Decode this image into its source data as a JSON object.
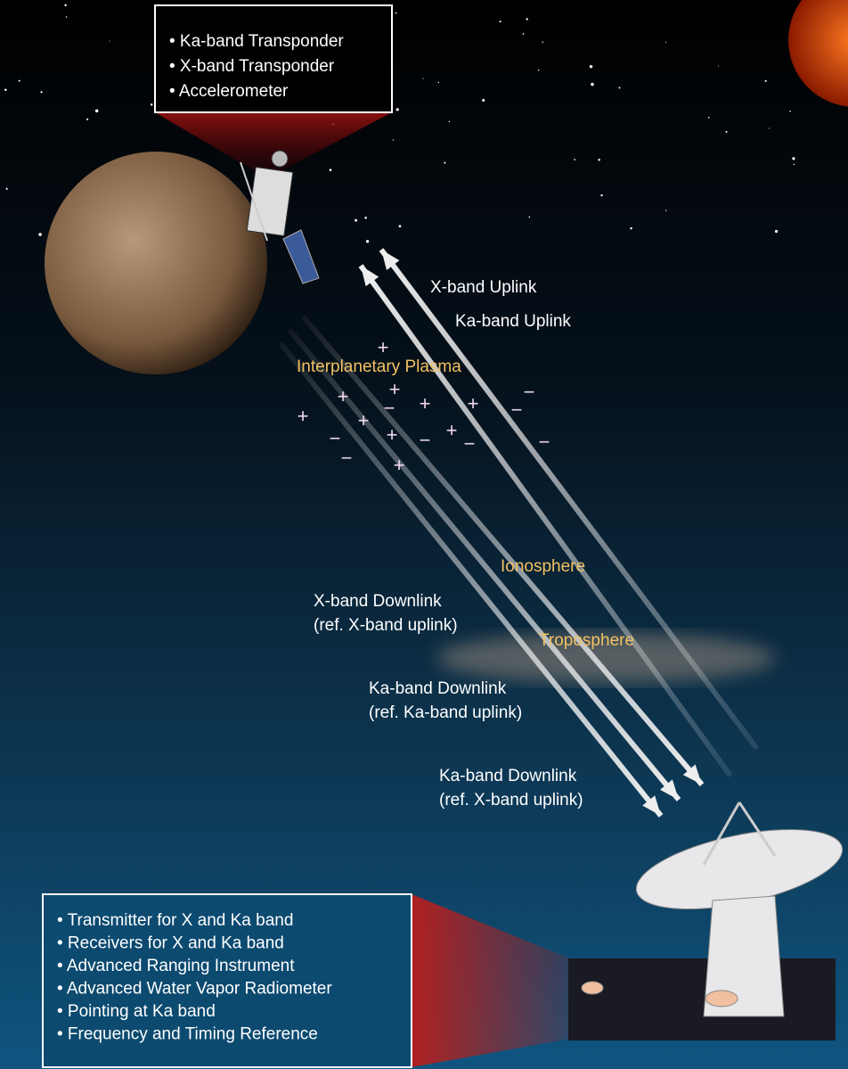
{
  "spacecraft_box": {
    "items": [
      "• Ka-band Transponder",
      "• X-band Transponder",
      "• Accelerometer"
    ]
  },
  "uplinks": [
    "X-band Uplink",
    "Ka-band Uplink"
  ],
  "media": {
    "plasma": "Interplanetary Plasma",
    "ionosphere": "Ionosphere",
    "troposphere": "Troposphere"
  },
  "plasma_signs": [
    "+",
    "+",
    "+",
    "−",
    "+",
    "+",
    "−",
    "−",
    "+",
    "+",
    "−",
    "+",
    "−",
    "+",
    "−",
    "−",
    "−",
    "+"
  ],
  "downlinks": [
    {
      "name": "X-band Downlink",
      "reference": "(ref. X-band uplink)"
    },
    {
      "name": "Ka-band Downlink",
      "reference": "(ref. Ka-band uplink)"
    },
    {
      "name": "Ka-band Downlink",
      "reference": "(ref. X-band uplink)"
    }
  ],
  "ground_box": {
    "items": [
      "• Transmitter for X and Ka band",
      "• Receivers for X and Ka band",
      "• Advanced Ranging Instrument",
      "• Advanced Water Vapor Radiometer",
      "• Pointing at Ka band",
      "• Frequency and Timing Reference"
    ]
  }
}
